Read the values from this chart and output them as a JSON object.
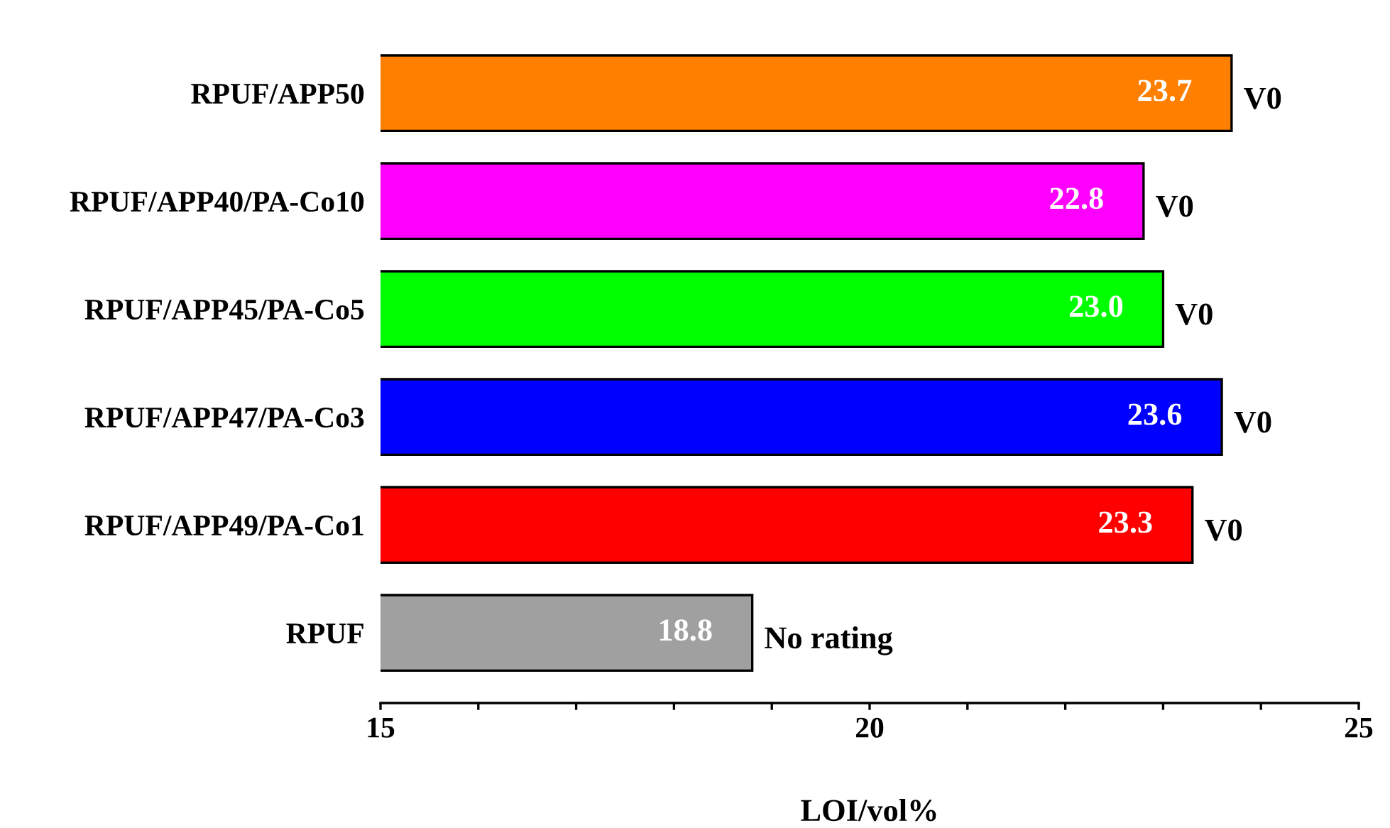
{
  "chart_data": {
    "type": "bar",
    "orientation": "horizontal",
    "xlabel": "LOI/vol%",
    "categories": [
      "RPUF/APP50",
      "RPUF/APP40/PA-Co10",
      "RPUF/APP45/PA-Co5",
      "RPUF/APP47/PA-Co3",
      "RPUF/APP49/PA-Co1",
      "RPUF"
    ],
    "values": [
      23.7,
      22.8,
      23.0,
      23.6,
      23.3,
      18.8
    ],
    "colors": [
      "#ff8000",
      "#ff00ff",
      "#00ff00",
      "#0000ff",
      "#ff0000",
      "#a0a0a0"
    ],
    "value_labels": [
      "23.7",
      "22.8",
      "23.0",
      "23.6",
      "23.3",
      "18.8"
    ],
    "xlim": [
      15,
      25
    ],
    "xticks": [
      15,
      {
        "value": 16,
        "label": null
      },
      {
        "value": 17,
        "label": null
      },
      {
        "value": 18,
        "label": null
      },
      {
        "value": 19,
        "label": null
      },
      20,
      {
        "value": 21,
        "label": null
      },
      {
        "value": 22,
        "label": null
      },
      {
        "value": 23,
        "label": null
      },
      {
        "value": 24,
        "label": null
      },
      25
    ],
    "annotations": [
      {
        "text": "V0",
        "x": 23.7,
        "y": "RPUF/APP50"
      },
      {
        "text": "V0",
        "x": 22.8,
        "y": "RPUF/APP40/PA-Co10"
      },
      {
        "text": "V0",
        "x": 23.0,
        "y": "RPUF/APP45/PA-Co5"
      },
      {
        "text": "V0",
        "x": 23.6,
        "y": "RPUF/APP47/PA-Co3"
      },
      {
        "text": "V0",
        "x": 23.3,
        "y": "RPUF/APP49/PA-Co1"
      },
      {
        "text": "No rating",
        "x": 18.8,
        "y": "RPUF"
      }
    ],
    "grid": false,
    "legend": false
  }
}
